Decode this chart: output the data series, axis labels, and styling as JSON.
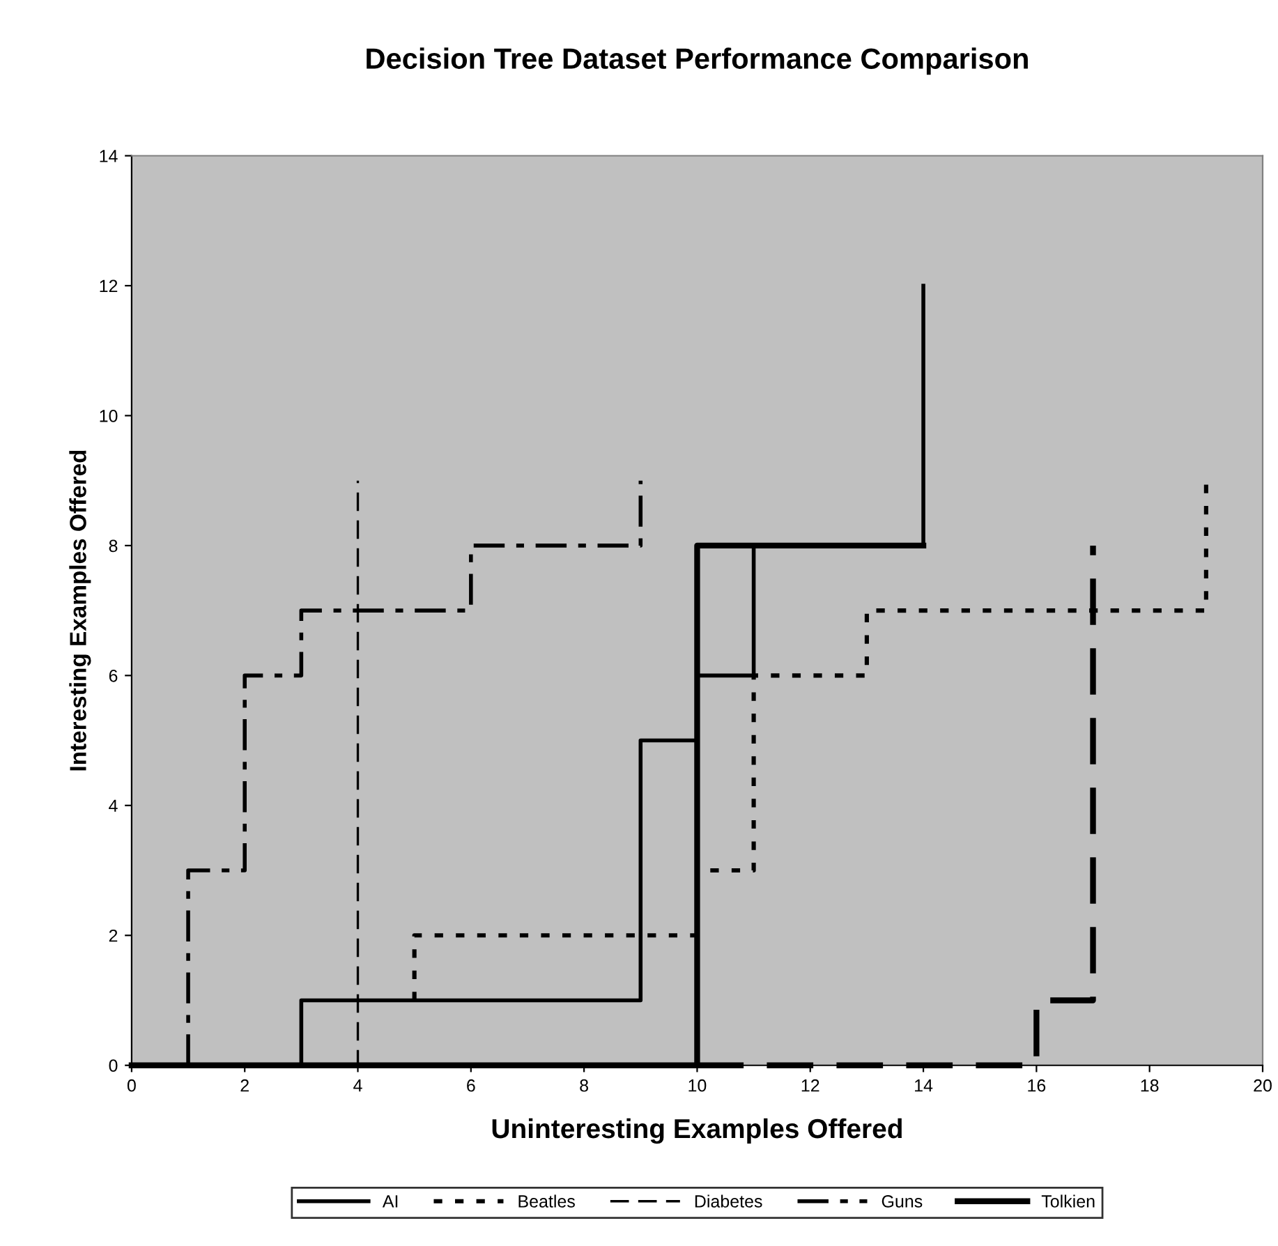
{
  "chart_data": {
    "type": "line",
    "title": "Decision Tree Dataset Performance Comparison",
    "xlabel": "Uninteresting Examples Offered",
    "ylabel": "Interesting Examples Offered",
    "xlim": [
      0,
      20
    ],
    "ylim": [
      0,
      14
    ],
    "xticks": [
      0,
      2,
      4,
      6,
      8,
      10,
      12,
      14,
      16,
      18,
      20
    ],
    "yticks": [
      0,
      2,
      4,
      6,
      8,
      10,
      12,
      14
    ],
    "grid": false,
    "legend": "bottom",
    "marker": "none",
    "series": [
      {
        "name": "AI",
        "color": "#000000",
        "line_style": "solid",
        "x": [
          3,
          3,
          9,
          9,
          10,
          10,
          11,
          11,
          14,
          14
        ],
        "values": [
          0,
          1,
          1,
          5,
          5,
          6,
          6,
          8,
          8,
          12
        ]
      },
      {
        "name": "Beatles",
        "color": "#000000",
        "line_style": "dotted",
        "x": [
          5,
          5,
          10,
          10,
          11,
          11,
          13,
          13,
          19,
          19
        ],
        "values": [
          1,
          2,
          2,
          3,
          3,
          6,
          6,
          7,
          7,
          9
        ]
      },
      {
        "name": "Diabetes",
        "color": "#000000",
        "line_style": "dashed",
        "x": [
          0,
          4,
          4
        ],
        "values": [
          0,
          0,
          9
        ]
      },
      {
        "name": "Guns",
        "color": "#000000",
        "line_style": "dashdot",
        "x": [
          1,
          1,
          2,
          2,
          3,
          3,
          6,
          6,
          9,
          9
        ],
        "values": [
          0,
          3,
          3,
          6,
          6,
          7,
          7,
          8,
          8,
          9
        ]
      },
      {
        "color": "#000000",
        "line_style": "dashed",
        "x": [
          10,
          16,
          16,
          17,
          17
        ],
        "values": [
          0,
          0,
          1,
          1,
          8
        ]
      },
      {
        "name": "Tolkien",
        "color": "#000000",
        "line_style": "solid",
        "x": [
          0,
          10,
          10,
          14
        ],
        "values": [
          0,
          0,
          8,
          8
        ]
      }
    ]
  }
}
